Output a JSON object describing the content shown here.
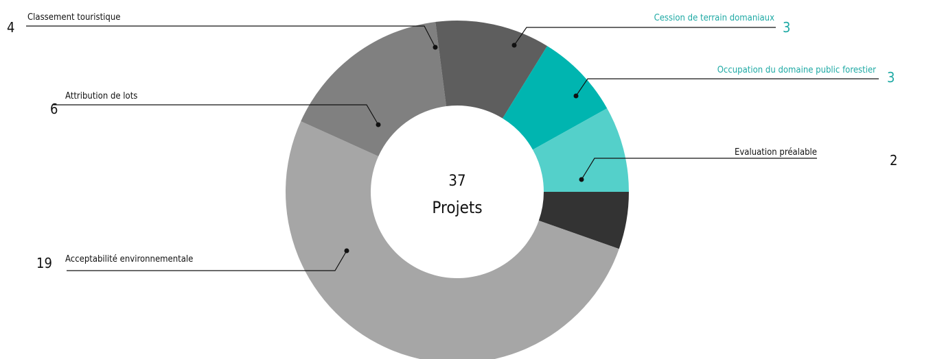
{
  "chart_data": {
    "type": "pie",
    "donut": true,
    "center_value": "37",
    "center_label": "Projets",
    "slices": [
      {
        "label": "Evaluation préalable",
        "value": 2,
        "color": "#333333"
      },
      {
        "label": "Acceptabilité environnementale",
        "value": 19,
        "color": "#a6a6a6"
      },
      {
        "label": "Attribution de lots",
        "value": 6,
        "color": "#808080"
      },
      {
        "label": "Classement touristique",
        "value": 4,
        "color": "#5e5e5e"
      },
      {
        "label": "Cession de terrain domaniaux",
        "value": 3,
        "color": "#00b5b0",
        "highlight": true
      },
      {
        "label": "Occupation du domaine public forestier",
        "value": 3,
        "color": "#54d0ca",
        "highlight": true
      }
    ],
    "highlight_text_color": "#1ea9a4"
  }
}
